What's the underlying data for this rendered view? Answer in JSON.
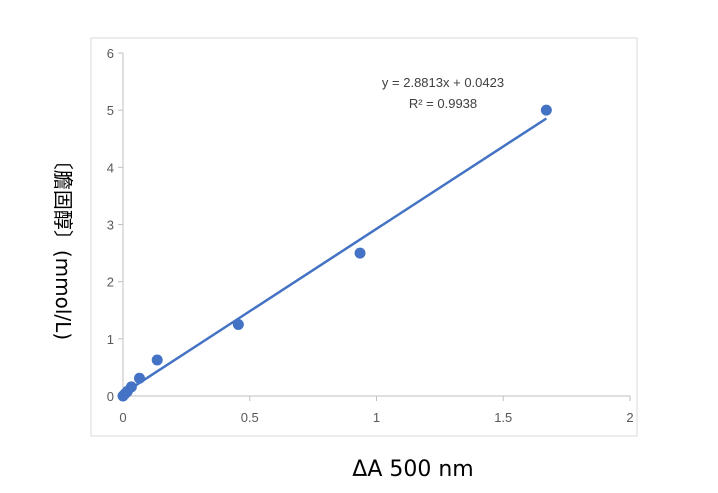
{
  "chart_data": {
    "type": "scatter",
    "title": "",
    "xlabel": "ΔA 500 nm",
    "ylabel": "〔膽固醇〕(mmol/L)",
    "xlim": [
      0,
      2
    ],
    "ylim": [
      0,
      6
    ],
    "x_ticks": [
      "0",
      "0.5",
      "1",
      "1.5",
      "2"
    ],
    "y_ticks": [
      "0",
      "1",
      "2",
      "3",
      "4",
      "5",
      "6"
    ],
    "grid": false,
    "legend": "none",
    "series": [
      {
        "x": [
          0.0,
          0.008,
          0.017,
          0.033,
          0.065,
          0.135,
          0.455,
          0.935,
          1.67
        ],
        "y": [
          0.0,
          0.04,
          0.08,
          0.16,
          0.31,
          0.63,
          1.25,
          2.5,
          5.0
        ],
        "color": "#4472C4"
      }
    ],
    "trendline": {
      "slope": 2.8813,
      "intercept": 0.0423,
      "x_range": [
        0.0,
        1.67
      ],
      "color": "#4472C4",
      "equation_text": "y = 2.8813x + 0.0423",
      "r2_text": "R² = 0.9938"
    }
  }
}
